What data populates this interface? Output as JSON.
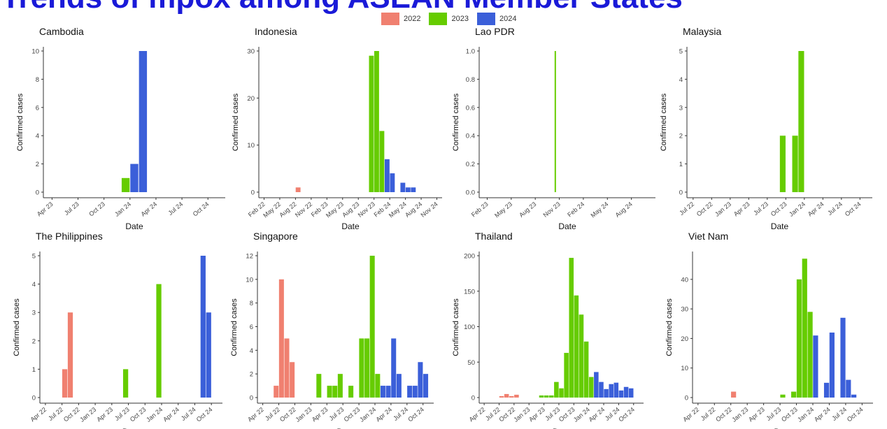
{
  "title": "Trends of mpox among ASEAN Member States",
  "legend": [
    {
      "label": "2022",
      "color": "#f08070"
    },
    {
      "label": "2023",
      "color": "#66cc00"
    },
    {
      "label": "2024",
      "color": "#3b5fd9"
    }
  ],
  "colors": {
    "2022": "#f08070",
    "2023": "#66cc00",
    "2024": "#3b5fd9",
    "axis": "#333333"
  },
  "chart_data": [
    {
      "type": "bar",
      "title": "Cambodia",
      "xlabel": "Date",
      "ylabel": "Confirmed cases",
      "ylim": [
        0,
        10
      ],
      "yticks": [
        "0",
        "2",
        "4",
        "6",
        "8",
        "10"
      ],
      "xlim": [
        "2023-03",
        "2024-11"
      ],
      "xticks": [
        "Apr 23",
        "Jul 23",
        "Oct 23",
        "Jan 24",
        "Apr 24",
        "Jul 24",
        "Oct 24"
      ],
      "bars": [
        {
          "x": "2023-12",
          "value": 1,
          "year": "2023"
        },
        {
          "x": "2024-01",
          "value": 2,
          "year": "2024"
        },
        {
          "x": "2024-02",
          "value": 10,
          "year": "2024"
        }
      ]
    },
    {
      "type": "bar",
      "title": "Indonesia",
      "xlabel": "Date",
      "ylabel": "Confirmed cases",
      "ylim": [
        0,
        30
      ],
      "yticks": [
        "0",
        "10",
        "20",
        "30"
      ],
      "xlim": [
        "2022-01",
        "2024-11"
      ],
      "xticks": [
        "Feb 22",
        "May 22",
        "Aug 22",
        "Nov 22",
        "Feb 23",
        "May 23",
        "Aug 23",
        "Nov 23",
        "Feb 24",
        "May 24",
        "Aug 24",
        "Nov 24"
      ],
      "bars": [
        {
          "x": "2022-08",
          "value": 1,
          "year": "2022"
        },
        {
          "x": "2023-10",
          "value": 29,
          "year": "2023"
        },
        {
          "x": "2023-11",
          "value": 30,
          "year": "2023"
        },
        {
          "x": "2023-12",
          "value": 13,
          "year": "2023"
        },
        {
          "x": "2024-01",
          "value": 7,
          "year": "2024"
        },
        {
          "x": "2024-02",
          "value": 4,
          "year": "2024"
        },
        {
          "x": "2024-04",
          "value": 2,
          "year": "2024"
        },
        {
          "x": "2024-05",
          "value": 1,
          "year": "2024"
        },
        {
          "x": "2024-06",
          "value": 1,
          "year": "2024"
        }
      ]
    },
    {
      "type": "bar",
      "title": "Lao PDR",
      "xlabel": "Date",
      "ylabel": "Confirmed cases",
      "ylim": [
        0,
        1
      ],
      "yticks": [
        "0.0",
        "0.2",
        "0.4",
        "0.6",
        "0.8",
        "1.0"
      ],
      "xlim": [
        "2023-01",
        "2024-10"
      ],
      "xticks": [
        "Feb 23",
        "May 23",
        "Aug 23",
        "Nov 23",
        "Feb 24",
        "May 24",
        "Aug 24"
      ],
      "thin": true,
      "bars": [
        {
          "x": "2023-10",
          "value": 1,
          "year": "2023"
        }
      ]
    },
    {
      "type": "bar",
      "title": "Malaysia",
      "xlabel": "Date",
      "ylabel": "Confirmed cases",
      "ylim": [
        0,
        5
      ],
      "yticks": [
        "0",
        "1",
        "2",
        "3",
        "4",
        "5"
      ],
      "xlim": [
        "2022-06",
        "2024-11"
      ],
      "xticks": [
        "Jul 22",
        "Oct 22",
        "Jan 23",
        "Apr 23",
        "Jul 23",
        "Oct 23",
        "Jan 24",
        "Apr 24",
        "Jul 24",
        "Oct 24"
      ],
      "bars": [
        {
          "x": "2023-09",
          "value": 2,
          "year": "2023"
        },
        {
          "x": "2023-11",
          "value": 2,
          "year": "2023"
        },
        {
          "x": "2023-12",
          "value": 5,
          "year": "2023"
        }
      ]
    },
    {
      "type": "bar",
      "title": "The Philippines",
      "xlabel": "Date",
      "ylabel": "Confirmed cases",
      "ylim": [
        0,
        5
      ],
      "yticks": [
        "0",
        "1",
        "2",
        "3",
        "4",
        "5"
      ],
      "xlim": [
        "2022-03",
        "2024-11"
      ],
      "xticks": [
        "Apr 22",
        "Jul 22",
        "Oct 22",
        "Jan 23",
        "Apr 23",
        "Jul 23",
        "Oct 23",
        "Jan 24",
        "Apr 24",
        "Jul 24",
        "Oct 24"
      ],
      "bars": [
        {
          "x": "2022-07",
          "value": 1,
          "year": "2022"
        },
        {
          "x": "2022-08",
          "value": 3,
          "year": "2022"
        },
        {
          "x": "2023-06",
          "value": 1,
          "year": "2023"
        },
        {
          "x": "2023-12",
          "value": 4,
          "year": "2023"
        },
        {
          "x": "2024-08",
          "value": 5,
          "year": "2024"
        },
        {
          "x": "2024-09",
          "value": 3,
          "year": "2024"
        }
      ]
    },
    {
      "type": "bar",
      "title": "Singapore",
      "xlabel": "Date",
      "ylabel": "Confirmed cases",
      "ylim": [
        0,
        12
      ],
      "yticks": [
        "0",
        "2",
        "4",
        "6",
        "8",
        "10",
        "12"
      ],
      "xlim": [
        "2022-03",
        "2024-11"
      ],
      "xticks": [
        "Apr 22",
        "Jul 22",
        "Oct 22",
        "Jan 23",
        "Apr 23",
        "Jul 23",
        "Oct 23",
        "Jan 24",
        "Apr 24",
        "Jul 24",
        "Oct 24"
      ],
      "bars": [
        {
          "x": "2022-06",
          "value": 1,
          "year": "2022"
        },
        {
          "x": "2022-07",
          "value": 10,
          "year": "2022"
        },
        {
          "x": "2022-08",
          "value": 5,
          "year": "2022"
        },
        {
          "x": "2022-09",
          "value": 3,
          "year": "2022"
        },
        {
          "x": "2023-02",
          "value": 2,
          "year": "2023"
        },
        {
          "x": "2023-04",
          "value": 1,
          "year": "2023"
        },
        {
          "x": "2023-05",
          "value": 1,
          "year": "2023"
        },
        {
          "x": "2023-06",
          "value": 2,
          "year": "2023"
        },
        {
          "x": "2023-08",
          "value": 1,
          "year": "2023"
        },
        {
          "x": "2023-10",
          "value": 5,
          "year": "2023"
        },
        {
          "x": "2023-11",
          "value": 5,
          "year": "2023"
        },
        {
          "x": "2023-12",
          "value": 12,
          "year": "2023"
        },
        {
          "x": "2024-01",
          "value": 2,
          "year": "2023"
        },
        {
          "x": "2024-02",
          "value": 1,
          "year": "2024"
        },
        {
          "x": "2024-03",
          "value": 1,
          "year": "2024"
        },
        {
          "x": "2024-04",
          "value": 5,
          "year": "2024"
        },
        {
          "x": "2024-05",
          "value": 2,
          "year": "2024"
        },
        {
          "x": "2024-07",
          "value": 1,
          "year": "2024"
        },
        {
          "x": "2024-08",
          "value": 1,
          "year": "2024"
        },
        {
          "x": "2024-09",
          "value": 3,
          "year": "2024"
        },
        {
          "x": "2024-10",
          "value": 2,
          "year": "2024"
        }
      ]
    },
    {
      "type": "bar",
      "title": "Thailand",
      "xlabel": "Date",
      "ylabel": "Confirmed cases",
      "ylim": [
        0,
        200
      ],
      "yticks": [
        "0",
        "50",
        "100",
        "150",
        "200"
      ],
      "xlim": [
        "2022-03",
        "2024-11"
      ],
      "xticks": [
        "Apr 22",
        "Jul 22",
        "Oct 22",
        "Jan 23",
        "Apr 23",
        "Jul 23",
        "Oct 23",
        "Jan 24",
        "Apr 24",
        "Jul 24",
        "Oct 24"
      ],
      "bars": [
        {
          "x": "2022-07",
          "value": 2,
          "year": "2022"
        },
        {
          "x": "2022-08",
          "value": 5,
          "year": "2022"
        },
        {
          "x": "2022-09",
          "value": 2,
          "year": "2022"
        },
        {
          "x": "2022-10",
          "value": 4,
          "year": "2022"
        },
        {
          "x": "2023-03",
          "value": 3,
          "year": "2023"
        },
        {
          "x": "2023-04",
          "value": 3,
          "year": "2023"
        },
        {
          "x": "2023-05",
          "value": 3,
          "year": "2023"
        },
        {
          "x": "2023-06",
          "value": 22,
          "year": "2023"
        },
        {
          "x": "2023-07",
          "value": 13,
          "year": "2023"
        },
        {
          "x": "2023-08",
          "value": 63,
          "year": "2023"
        },
        {
          "x": "2023-09",
          "value": 197,
          "year": "2023"
        },
        {
          "x": "2023-10",
          "value": 144,
          "year": "2023"
        },
        {
          "x": "2023-11",
          "value": 117,
          "year": "2023"
        },
        {
          "x": "2023-12",
          "value": 79,
          "year": "2023"
        },
        {
          "x": "2024-01",
          "value": 29,
          "year": "2023"
        },
        {
          "x": "2024-02",
          "value": 36,
          "year": "2024"
        },
        {
          "x": "2024-03",
          "value": 22,
          "year": "2024"
        },
        {
          "x": "2024-04",
          "value": 12,
          "year": "2024"
        },
        {
          "x": "2024-05",
          "value": 19,
          "year": "2024"
        },
        {
          "x": "2024-06",
          "value": 21,
          "year": "2024"
        },
        {
          "x": "2024-07",
          "value": 10,
          "year": "2024"
        },
        {
          "x": "2024-08",
          "value": 15,
          "year": "2024"
        },
        {
          "x": "2024-09",
          "value": 13,
          "year": "2024"
        }
      ]
    },
    {
      "type": "bar",
      "title": "Viet Nam",
      "xlabel": "Date",
      "ylabel": "Confirmed cases",
      "ylim": [
        0,
        48
      ],
      "yticks": [
        "0",
        "10",
        "20",
        "30",
        "40"
      ],
      "xlim": [
        "2022-03",
        "2024-11"
      ],
      "xticks": [
        "Apr 22",
        "Jul 22",
        "Oct 22",
        "Jan 23",
        "Apr 23",
        "Jul 23",
        "Oct 23",
        "Jan 24",
        "Apr 24",
        "Jul 24",
        "Oct 24"
      ],
      "bars": [
        {
          "x": "2022-10",
          "value": 2,
          "year": "2022"
        },
        {
          "x": "2023-07",
          "value": 1,
          "year": "2023"
        },
        {
          "x": "2023-09",
          "value": 2,
          "year": "2023"
        },
        {
          "x": "2023-10",
          "value": 40,
          "year": "2023"
        },
        {
          "x": "2023-11",
          "value": 47,
          "year": "2023"
        },
        {
          "x": "2023-12",
          "value": 29,
          "year": "2023"
        },
        {
          "x": "2024-01",
          "value": 21,
          "year": "2024"
        },
        {
          "x": "2024-03",
          "value": 5,
          "year": "2024"
        },
        {
          "x": "2024-04",
          "value": 22,
          "year": "2024"
        },
        {
          "x": "2024-06",
          "value": 27,
          "year": "2024"
        },
        {
          "x": "2024-07",
          "value": 6,
          "year": "2024"
        },
        {
          "x": "2024-08",
          "value": 1,
          "year": "2024"
        }
      ]
    }
  ]
}
